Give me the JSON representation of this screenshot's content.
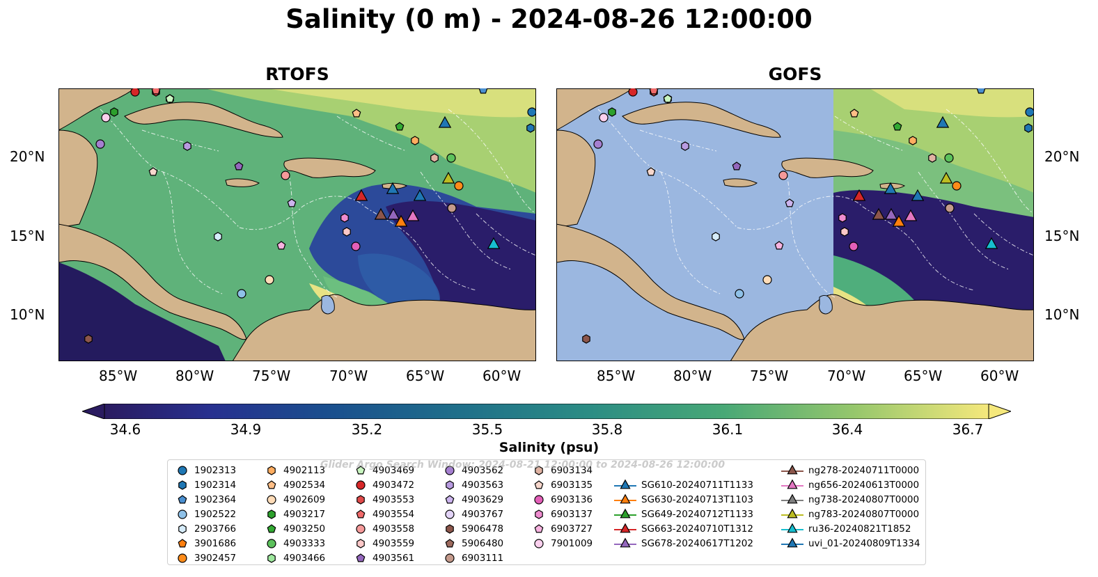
{
  "title": "Salinity (0 m) - 2024-08-26 12:00:00",
  "panels": [
    {
      "title": "RTOFS"
    },
    {
      "title": "GOFS"
    }
  ],
  "lon_ticks": [
    "85°W",
    "80°W",
    "75°W",
    "70°W",
    "65°W",
    "60°W"
  ],
  "lat_ticks": [
    "20°N",
    "15°N",
    "10°N"
  ],
  "colorbar": {
    "label": "Salinity (psu)",
    "ticks": [
      "34.6",
      "34.9",
      "35.2",
      "35.5",
      "35.8",
      "36.1",
      "36.4",
      "36.7"
    ],
    "min": 34.6,
    "max": 36.7,
    "colormap": "haline"
  },
  "watermark": "Glider Argo Search Window: 2024-08-21 12:00:00 to 2024-08-26 12:00:00",
  "colors": {
    "land": "#d2b48c",
    "gofs_no_data": "#9bb7e0",
    "low_salinity": "#2a1b60",
    "high_salinity": "#f5e87c"
  },
  "legend": {
    "argo": [
      {
        "id": "1902313",
        "shape": "circle",
        "color": "#1f77b4"
      },
      {
        "id": "1902314",
        "shape": "hexagon",
        "color": "#1f77b4"
      },
      {
        "id": "1902364",
        "shape": "pentagon",
        "color": "#4a8fd0"
      },
      {
        "id": "1902522",
        "shape": "circle",
        "color": "#8fc1e8"
      },
      {
        "id": "2903766",
        "shape": "hexagon",
        "color": "#d6ecfa"
      },
      {
        "id": "3901686",
        "shape": "pentagon",
        "color": "#ff7f0e"
      },
      {
        "id": "3902457",
        "shape": "circle",
        "color": "#ff8c1a"
      },
      {
        "id": "4902113",
        "shape": "hexagon",
        "color": "#ffad60"
      },
      {
        "id": "4902534",
        "shape": "pentagon",
        "color": "#ffbe86"
      },
      {
        "id": "4902609",
        "shape": "circle",
        "color": "#ffdcb8"
      },
      {
        "id": "4903217",
        "shape": "hexagon",
        "color": "#2ca02c"
      },
      {
        "id": "4903250",
        "shape": "pentagon",
        "color": "#33aa33"
      },
      {
        "id": "4903333",
        "shape": "circle",
        "color": "#5cc15c"
      },
      {
        "id": "4903466",
        "shape": "hexagon",
        "color": "#9ee89e"
      },
      {
        "id": "4903469",
        "shape": "pentagon",
        "color": "#c9f5c0"
      },
      {
        "id": "4903472",
        "shape": "circle",
        "color": "#d62728"
      },
      {
        "id": "4903553",
        "shape": "hexagon",
        "color": "#e04a4a"
      },
      {
        "id": "4903554",
        "shape": "pentagon",
        "color": "#f06a6a"
      },
      {
        "id": "4903558",
        "shape": "circle",
        "color": "#f59a9a"
      },
      {
        "id": "4903559",
        "shape": "hexagon",
        "color": "#fcc8c8"
      },
      {
        "id": "4903561",
        "shape": "pentagon",
        "color": "#9467bd"
      },
      {
        "id": "4903562",
        "shape": "circle",
        "color": "#a57fd0"
      },
      {
        "id": "4903563",
        "shape": "hexagon",
        "color": "#b89be0"
      },
      {
        "id": "4903629",
        "shape": "pentagon",
        "color": "#ccb4ee"
      },
      {
        "id": "4903767",
        "shape": "circle",
        "color": "#e3d4f7"
      },
      {
        "id": "5906478",
        "shape": "hexagon",
        "color": "#8c564b"
      },
      {
        "id": "5906480",
        "shape": "pentagon",
        "color": "#9d6a5e"
      },
      {
        "id": "6903111",
        "shape": "circle",
        "color": "#c49a8c"
      },
      {
        "id": "6903134",
        "shape": "hexagon",
        "color": "#e0b3a3"
      },
      {
        "id": "6903135",
        "shape": "pentagon",
        "color": "#f7d7cc"
      },
      {
        "id": "6903136",
        "shape": "circle",
        "color": "#e35fb8"
      },
      {
        "id": "6903137",
        "shape": "hexagon",
        "color": "#ee8ccf"
      },
      {
        "id": "6903727",
        "shape": "pentagon",
        "color": "#f7b3e0"
      },
      {
        "id": "7901009",
        "shape": "circle",
        "color": "#fbd0ee"
      }
    ],
    "gliders": [
      {
        "id": "SG610-20240711T1133",
        "color": "#1f77b4"
      },
      {
        "id": "SG630-20240713T1103",
        "color": "#ff7f0e"
      },
      {
        "id": "SG649-20240712T1133",
        "color": "#2ca02c"
      },
      {
        "id": "SG663-20240710T1312",
        "color": "#d62728"
      },
      {
        "id": "SG678-20240617T1202",
        "color": "#9467bd"
      },
      {
        "id": "ng278-20240711T0000",
        "color": "#8c564b"
      },
      {
        "id": "ng656-20240613T0000",
        "color": "#e377c2"
      },
      {
        "id": "ng738-20240807T0000",
        "color": "#7f7f7f"
      },
      {
        "id": "ng783-20240807T0000",
        "color": "#bcbd22"
      },
      {
        "id": "ru36-20240821T1852",
        "color": "#17becf"
      },
      {
        "id": "uvi_01-20240809T1334",
        "color": "#1f77b4"
      }
    ]
  }
}
